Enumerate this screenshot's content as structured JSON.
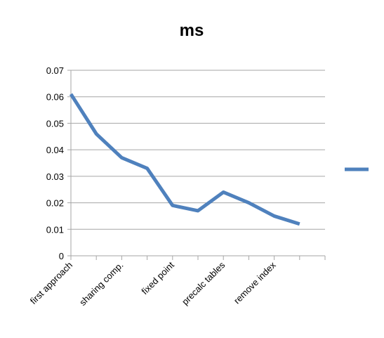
{
  "chart_data": {
    "type": "line",
    "title": "ms",
    "xlabel": "",
    "ylabel": "",
    "ylim": [
      0,
      0.07
    ],
    "yticks": [
      "0",
      "0.01",
      "0.02",
      "0.03",
      "0.04",
      "0.05",
      "0.06",
      "0.07"
    ],
    "categories": [
      "first approach",
      "",
      "sharing comp.",
      "",
      "fixed point",
      "",
      "precalc tables",
      "",
      "remove index",
      ""
    ],
    "series": [
      {
        "name": "",
        "color": "#4F81BD",
        "values": [
          0.061,
          0.046,
          0.037,
          0.033,
          0.019,
          0.017,
          0.024,
          0.02,
          0.015,
          0.012
        ]
      }
    ],
    "grid": "horizontal",
    "legend": "right"
  }
}
